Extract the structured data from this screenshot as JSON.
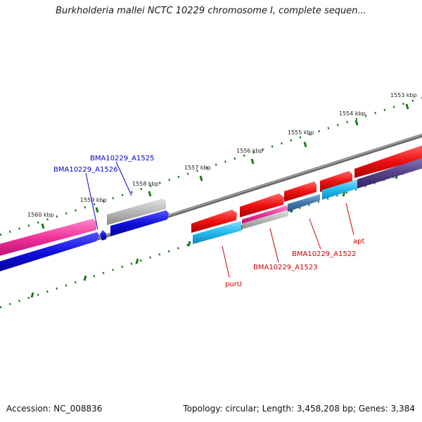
{
  "title": "Burkholderia mallei NCTC 10229 chromosome I, complete sequen...",
  "footer": {
    "accession": "Accession: NC_008836",
    "summary": "Topology: circular; Length: 3,458,208 bp; Genes: 3,384"
  },
  "scale": {
    "tick_labels": [
      "1553 kbp",
      "1554 kbp",
      "1555 kbp",
      "1556 kbp",
      "1557 kbp",
      "1558 kbp",
      "1559 kbp",
      "1560 kbp"
    ]
  },
  "gene_labels": {
    "a1525": "BMA10229_A1525",
    "a1526": "BMA10229_A1526",
    "a1522": "BMA10229_A1522",
    "a1523": "BMA10229_A1523",
    "purU": "purU",
    "apt": "apt"
  },
  "colors": {
    "forward_cds": "#ee1111",
    "reverse_cds": "#1010dd",
    "rna": "#ee3399",
    "cyan_track": "#22bbee",
    "gray_feature": "#b8b8b8",
    "steelblue_feature": "#4477aa",
    "slate_feature": "#554488",
    "backbone": "#777777",
    "ticks": "#1a7a1a",
    "label_blue": "#0000cc",
    "label_red": "#cc0000"
  }
}
